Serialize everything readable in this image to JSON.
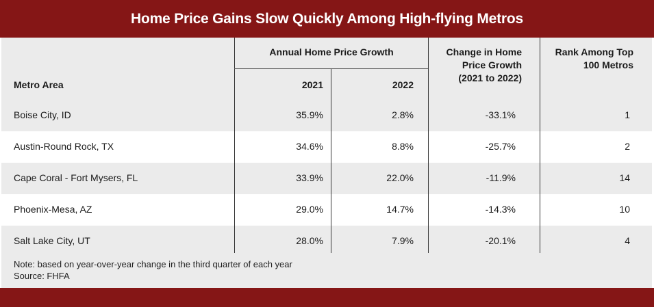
{
  "chart_data": {
    "type": "table",
    "title": "Home Price Gains Slow Quickly Among High-flying Metros",
    "group_header": "Annual Home Price Growth",
    "columns": [
      "Metro Area",
      "2021",
      "2022",
      "Change in Home Price Growth (2021 to 2022)",
      "Rank Among Top 100 Metros"
    ],
    "header_lines": {
      "metro": "Metro Area",
      "y2021": "2021",
      "y2022": "2022",
      "change_1": "Change in Home",
      "change_2": "Price Growth",
      "change_3": "(2021 to 2022)",
      "rank_1": "Rank Among Top",
      "rank_2": "100 Metros"
    },
    "rows": [
      {
        "metro": "Boise City, ID",
        "y2021": "35.9%",
        "y2022": "2.8%",
        "change": "-33.1%",
        "rank": "1"
      },
      {
        "metro": "Austin-Round Rock, TX",
        "y2021": "34.6%",
        "y2022": "8.8%",
        "change": "-25.7%",
        "rank": "2"
      },
      {
        "metro": "Cape Coral - Fort Mysers, FL",
        "y2021": "33.9%",
        "y2022": "22.0%",
        "change": "-11.9%",
        "rank": "14"
      },
      {
        "metro": "Phoenix-Mesa, AZ",
        "y2021": "29.0%",
        "y2022": "14.7%",
        "change": "-14.3%",
        "rank": "10"
      },
      {
        "metro": "Salt Lake City, UT",
        "y2021": "28.0%",
        "y2022": "7.9%",
        "change": "-20.1%",
        "rank": "4"
      }
    ],
    "note": "Note: based on year-over-year change in the third quarter of each year",
    "source": "Source: FHFA"
  },
  "colors": {
    "brand_bar": "#851616",
    "band_gray": "#ebebeb"
  }
}
